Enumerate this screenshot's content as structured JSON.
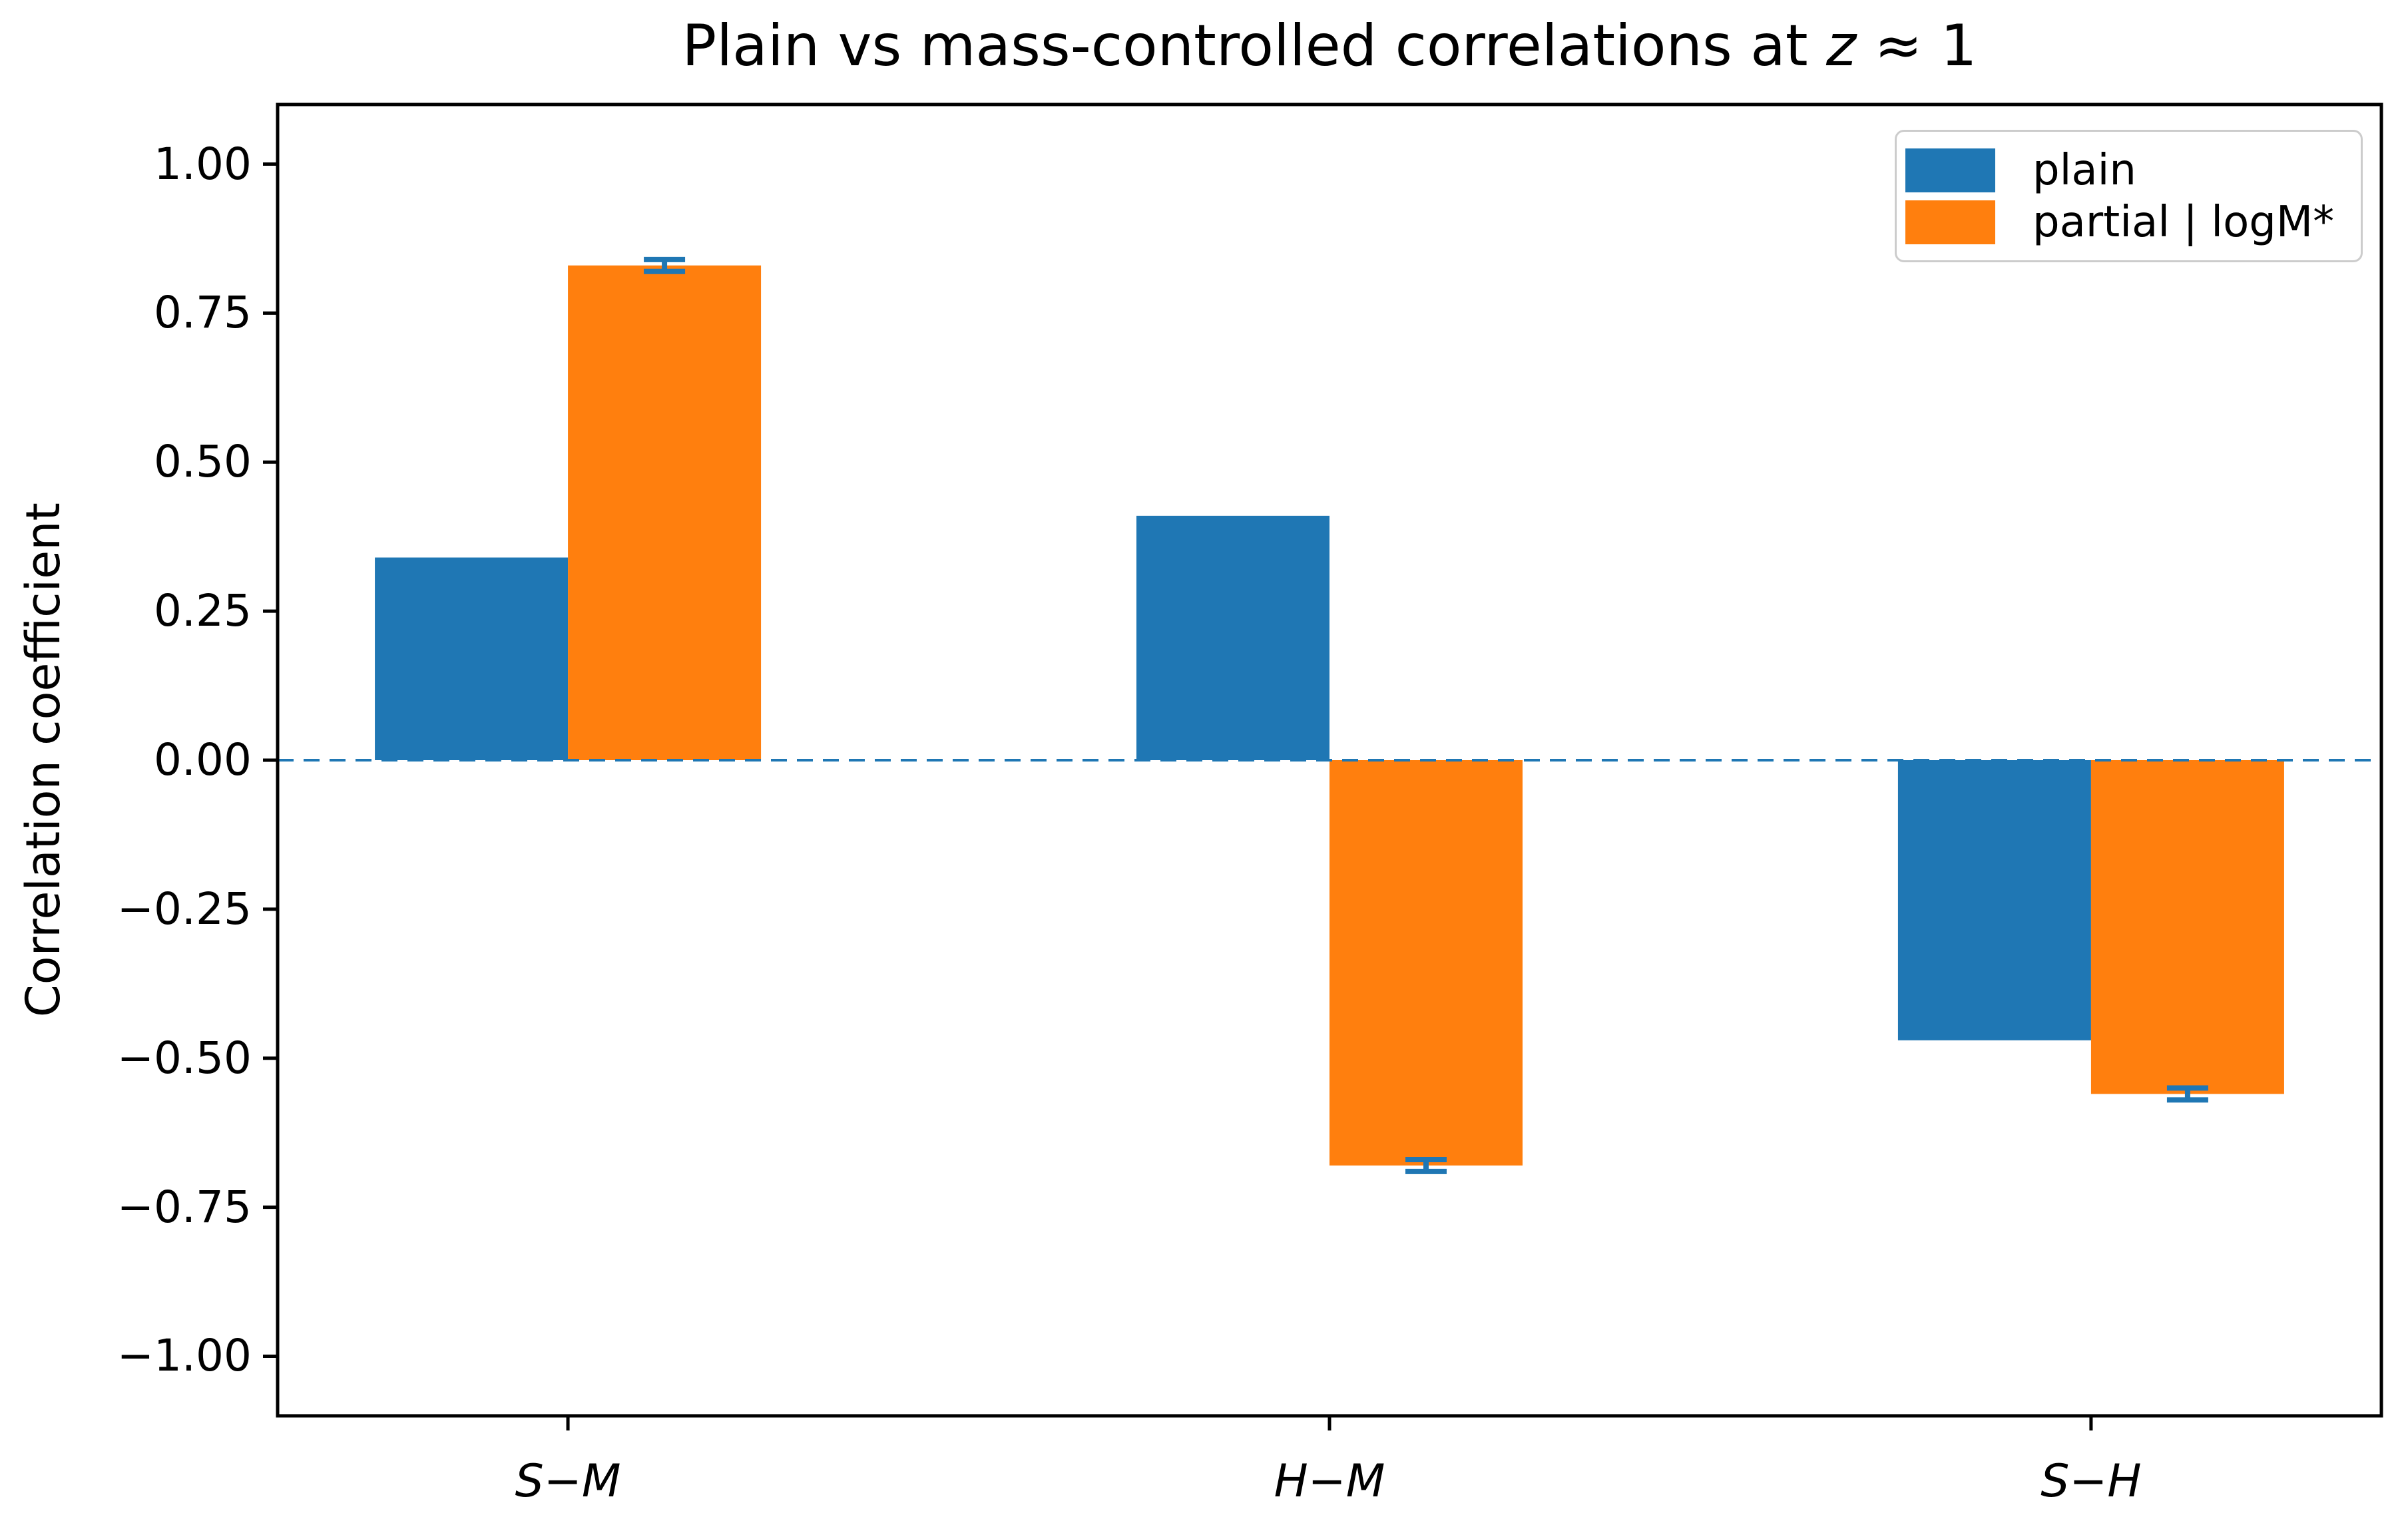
{
  "chart_data": {
    "type": "bar",
    "title": "Plain vs mass-controlled correlations at z ≈ 1",
    "title_parts": {
      "prefix": "Plain vs mass-controlled correlations at ",
      "math_var": "z",
      "math_rest": " ≈ 1"
    },
    "ylabel": "Correlation coefficient",
    "categories": [
      "S−M",
      "H−M",
      "S−H"
    ],
    "series": [
      {
        "name": "plain",
        "color": "#1f77b4",
        "values": [
          0.34,
          0.41,
          -0.47
        ],
        "errors": null
      },
      {
        "name": "partial | logM*",
        "color": "#ff7f0e",
        "values": [
          0.83,
          -0.68,
          -0.56
        ],
        "errors": [
          0.01,
          0.01,
          0.01
        ],
        "error_color": "#1f77b4"
      }
    ],
    "yticks": [
      -1.0,
      -0.75,
      -0.5,
      -0.25,
      0.0,
      0.25,
      0.5,
      0.75,
      1.0
    ],
    "ylim": [
      -1.1,
      1.1
    ],
    "zero_line": {
      "y": 0,
      "style": "dashed",
      "color": "#1f77b4"
    },
    "legend": {
      "position": "upper right"
    },
    "grid": false,
    "axis_color": "#000000"
  }
}
